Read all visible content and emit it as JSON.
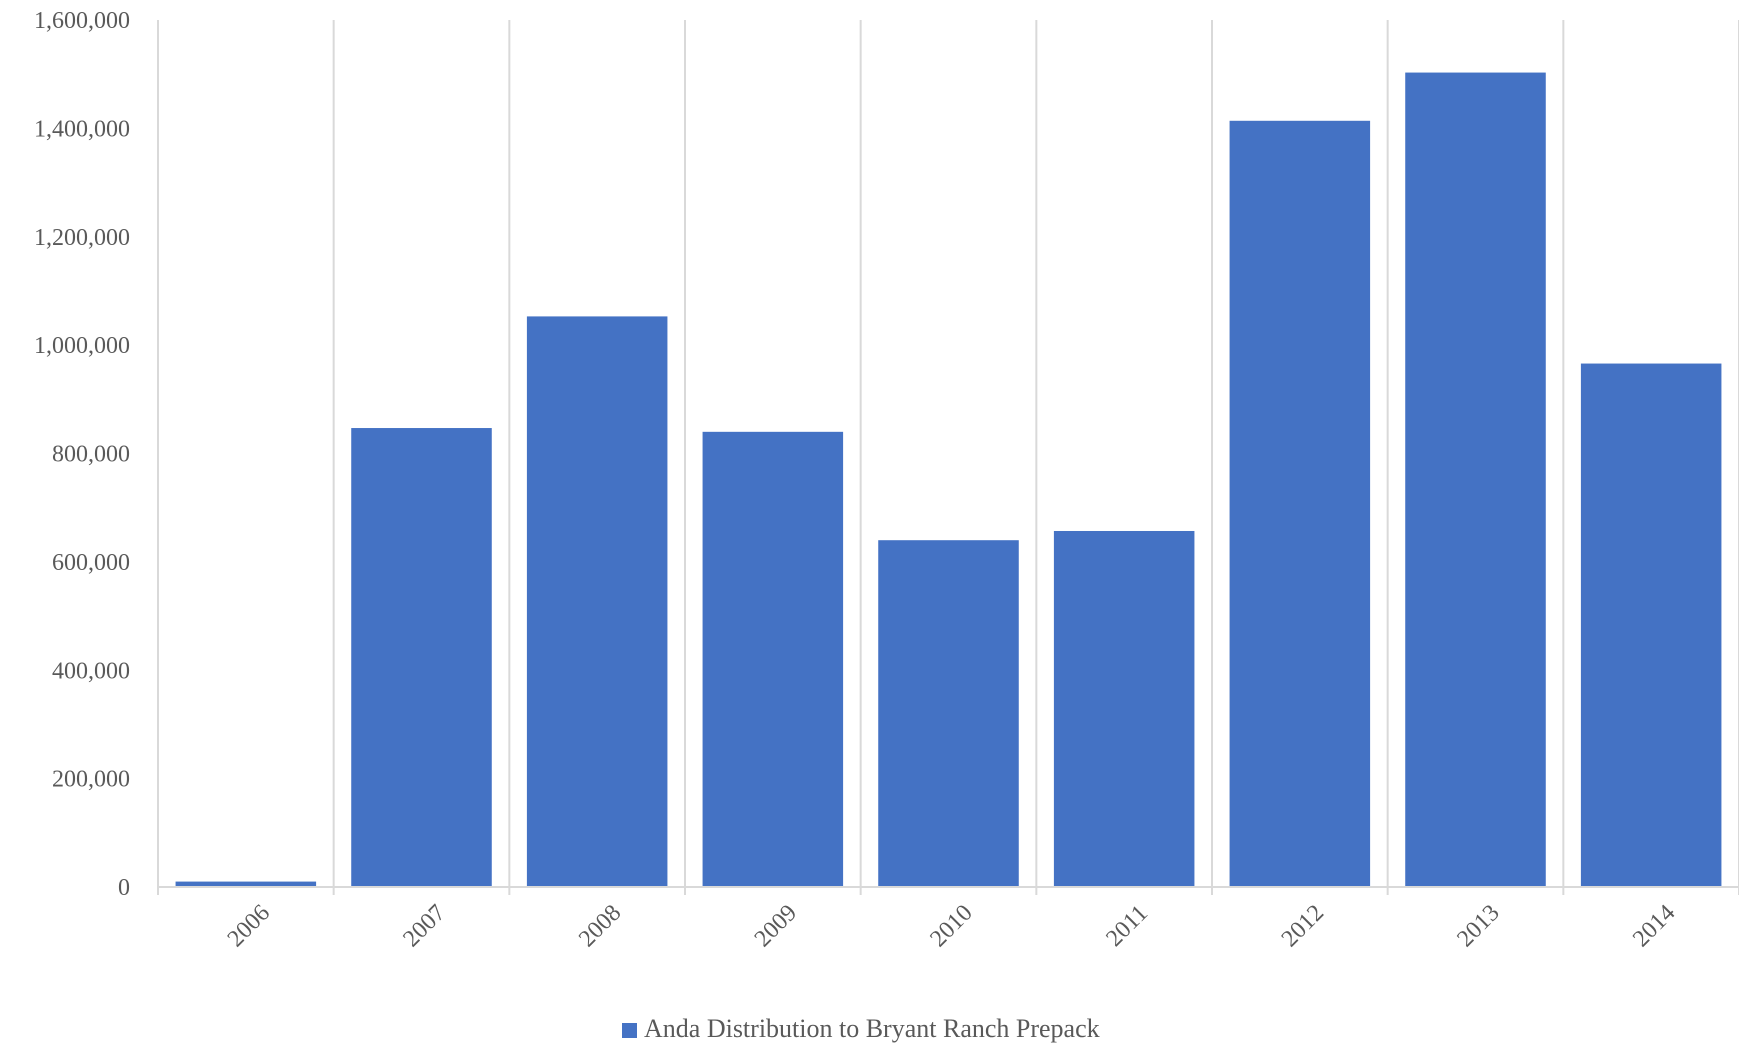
{
  "chart_data": {
    "type": "bar",
    "categories": [
      "2006",
      "2007",
      "2008",
      "2009",
      "2010",
      "2011",
      "2012",
      "2013",
      "2014"
    ],
    "series": [
      {
        "name": "Anda Distribution to Bryant Ranch Prepack",
        "values": [
          10000,
          847000,
          1053000,
          840000,
          640000,
          657000,
          1414000,
          1503000,
          966000
        ],
        "color": "#4472C4"
      }
    ],
    "y_ticks": [
      "0",
      "200,000",
      "400,000",
      "600,000",
      "800,000",
      "1,000,000",
      "1,200,000",
      "1,400,000",
      "1,600,000"
    ],
    "ylim": [
      0,
      1600000
    ],
    "title": "",
    "xlabel": "",
    "ylabel": "",
    "grid": "vertical",
    "legend_position": "bottom"
  }
}
